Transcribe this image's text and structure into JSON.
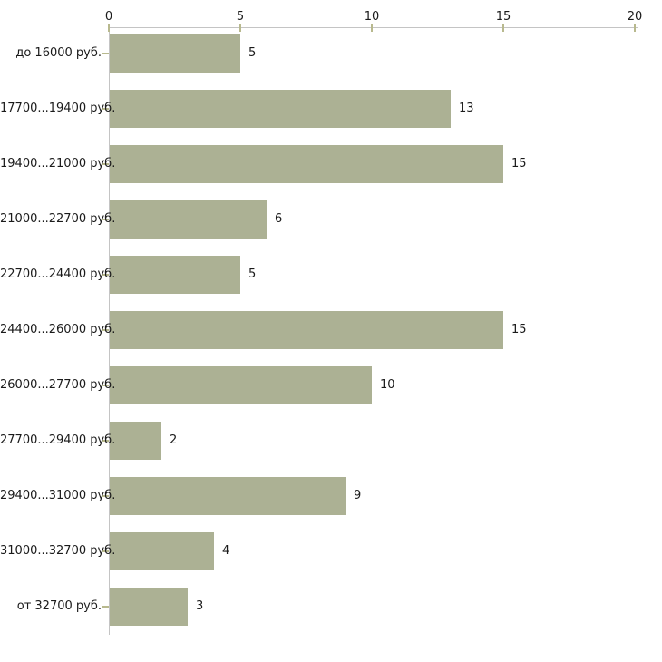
{
  "chart_data": {
    "type": "bar",
    "orientation": "horizontal",
    "title": "",
    "xlabel": "",
    "ylabel": "",
    "categories": [
      "до 16000 руб.",
      "17700...19400 руб.",
      "19400...21000 руб.",
      "21000...22700 руб.",
      "22700...24400 руб.",
      "24400...26000 руб.",
      "26000...27700 руб.",
      "27700...29400 руб.",
      "29400...31000 руб.",
      "31000...32700 руб.",
      "от 32700 руб."
    ],
    "values": [
      5,
      13,
      15,
      6,
      5,
      15,
      10,
      2,
      9,
      4,
      3
    ],
    "xlim": [
      0,
      20
    ],
    "xticks": [
      0,
      5,
      10,
      15,
      20
    ],
    "axis_position": "top",
    "grid": false,
    "value_labels": true,
    "legend": null,
    "colors": {
      "bar": "#acb194",
      "tick": "#b8b98e",
      "axis_line": "#c4c4c4",
      "text": "#1a1a1a",
      "background": "#ffffff"
    }
  }
}
